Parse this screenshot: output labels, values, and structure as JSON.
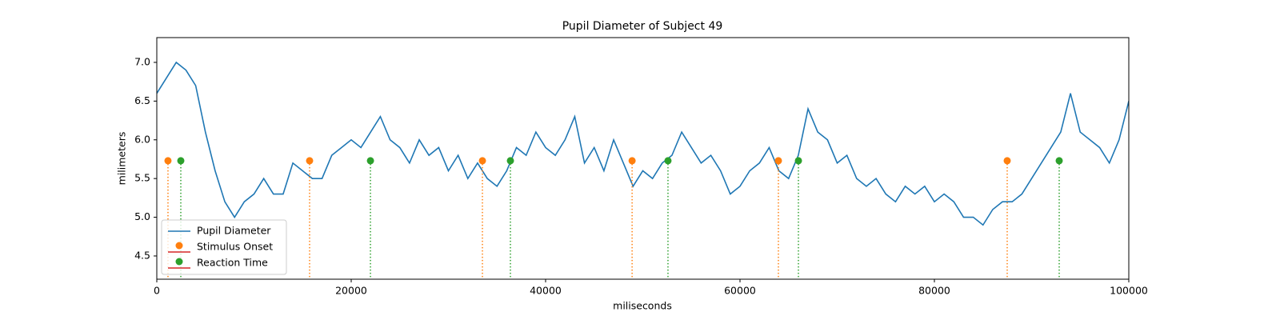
{
  "chart_data": {
    "type": "line",
    "title": "Pupil Diameter of Subject 49",
    "xlabel": "miliseconds",
    "ylabel": "milimeters",
    "xlim": [
      0,
      100000
    ],
    "xticks": [
      0,
      20000,
      40000,
      60000,
      80000,
      100000
    ],
    "ylim": [
      4.2,
      7.32
    ],
    "yticks": [
      4.5,
      {
        "value": 5,
        "label": "5.0"
      },
      5.5,
      {
        "value": 6,
        "label": "6.0"
      },
      6.5,
      {
        "value": 7,
        "label": "7.0"
      }
    ],
    "grid": false,
    "legend": "lower left",
    "series": [
      {
        "name": "Pupil Diameter",
        "type": "line",
        "color": "#1f77b4",
        "x": [
          0,
          1000,
          2000,
          3000,
          4000,
          5000,
          6000,
          7000,
          8000,
          9000,
          10000,
          11000,
          12000,
          13000,
          14000,
          15000,
          16000,
          17000,
          18000,
          19000,
          20000,
          21000,
          22000,
          23000,
          24000,
          25000,
          26000,
          27000,
          28000,
          29000,
          30000,
          31000,
          32000,
          33000,
          34000,
          35000,
          36000,
          37000,
          38000,
          39000,
          40000,
          41000,
          42000,
          43000,
          44000,
          45000,
          46000,
          47000,
          48000,
          49000,
          50000,
          51000,
          52000,
          53000,
          54000,
          55000,
          56000,
          57000,
          58000,
          59000,
          60000,
          61000,
          62000,
          63000,
          64000,
          65000,
          66000,
          67000,
          68000,
          69000,
          70000,
          71000,
          72000,
          73000,
          74000,
          75000,
          76000,
          77000,
          78000,
          79000,
          80000,
          81000,
          82000,
          83000,
          84000,
          85000,
          86000,
          87000,
          88000,
          89000,
          90000,
          91000,
          92000,
          93000,
          94000,
          95000,
          96000,
          97000,
          98000,
          99000,
          100000
        ],
        "values": [
          6.6,
          6.8,
          7.0,
          6.9,
          6.7,
          6.1,
          5.6,
          5.2,
          5.0,
          5.2,
          5.3,
          5.5,
          5.3,
          5.3,
          5.7,
          5.6,
          5.5,
          5.5,
          5.8,
          5.9,
          6.0,
          5.9,
          6.1,
          6.3,
          6.0,
          5.9,
          5.7,
          6.0,
          5.8,
          5.9,
          5.6,
          5.8,
          5.5,
          5.7,
          5.5,
          5.4,
          5.6,
          5.9,
          5.8,
          6.1,
          5.9,
          5.8,
          6.0,
          6.3,
          5.7,
          5.9,
          5.6,
          6.0,
          5.7,
          5.4,
          5.6,
          5.5,
          5.7,
          5.8,
          6.1,
          5.9,
          5.7,
          5.8,
          5.6,
          5.3,
          5.4,
          5.6,
          5.7,
          5.9,
          5.6,
          5.5,
          5.8,
          6.4,
          6.1,
          6.0,
          5.7,
          5.8,
          5.5,
          5.4,
          5.5,
          5.3,
          5.2,
          5.4,
          5.3,
          5.4,
          5.2,
          5.3,
          5.2,
          5.0,
          5.0,
          4.9,
          5.1,
          5.2,
          5.2,
          5.3,
          5.5,
          5.7,
          5.9,
          6.1,
          6.6,
          6.1,
          6.0,
          5.9,
          5.7,
          6.0,
          6.5
        ]
      },
      {
        "name": "Stimulus Onset",
        "type": "stem",
        "color": "#ff7f0e",
        "baseline_color": "#d62728",
        "x": [
          1150,
          15720,
          33500,
          48900,
          63950,
          87490
        ],
        "values": [
          5.73,
          5.73,
          5.73,
          5.73,
          5.73,
          5.73
        ]
      },
      {
        "name": "Reaction Time",
        "type": "stem",
        "color": "#2ca02c",
        "baseline_color": "#d62728",
        "x": [
          2470,
          21980,
          36380,
          52590,
          66010,
          92840
        ],
        "values": [
          5.73,
          5.73,
          5.73,
          5.73,
          5.73,
          5.73
        ]
      }
    ]
  }
}
